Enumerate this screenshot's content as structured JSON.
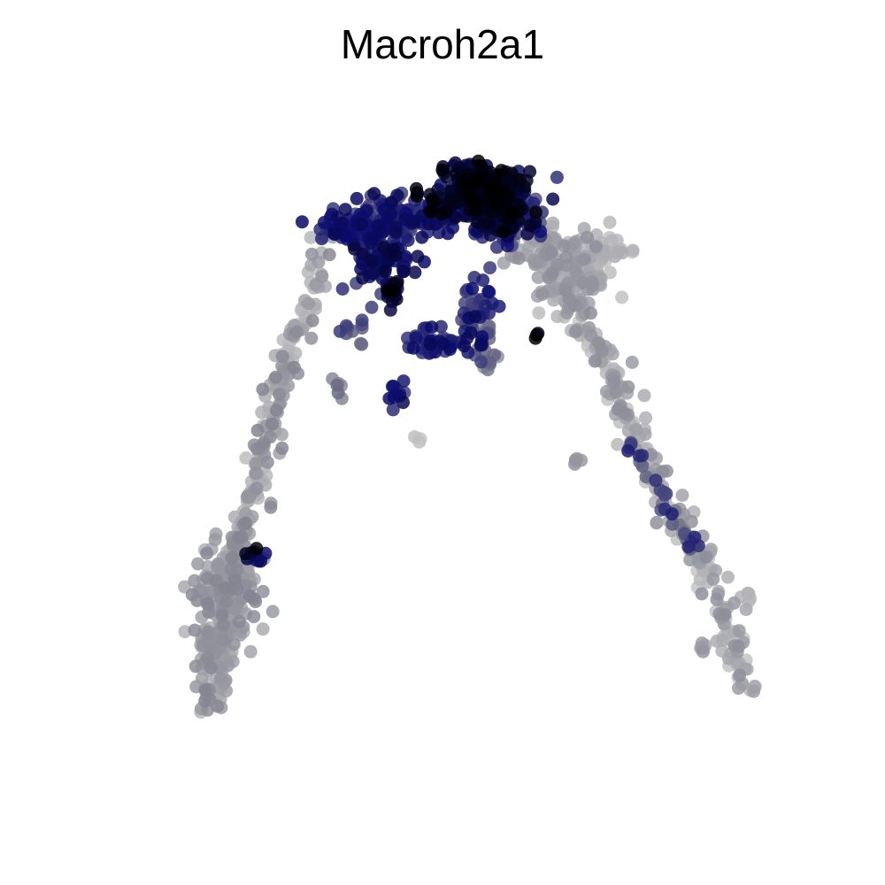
{
  "chart_data": {
    "type": "scatter",
    "title": "Macroh2a1",
    "xlabel": "",
    "ylabel": "",
    "axes": "none",
    "grid": false,
    "legend": "none",
    "xlim": [
      0,
      100
    ],
    "ylim": [
      0,
      100
    ],
    "colors": {
      "low": "#c8c8c8",
      "mid": "#7a7a8a",
      "high": "#0c0c6e",
      "max": "#000000"
    },
    "clusters": [
      {
        "cx": 55.0,
        "cy": 85.5,
        "sx": 3.0,
        "sy": 2.0,
        "n": 260,
        "expr": [
          0.82,
          1.0
        ]
      },
      {
        "cx": 58.5,
        "cy": 82.5,
        "sx": 2.5,
        "sy": 2.0,
        "n": 110,
        "expr": [
          0.55,
          0.95
        ]
      },
      {
        "cx": 46.0,
        "cy": 82.5,
        "sx": 4.5,
        "sy": 1.2,
        "n": 120,
        "expr": [
          0.55,
          0.85
        ]
      },
      {
        "cx": 38.5,
        "cy": 80.5,
        "sx": 2.8,
        "sy": 1.0,
        "n": 90,
        "expr": [
          0.55,
          0.85
        ]
      },
      {
        "cx": 42.5,
        "cy": 76.5,
        "sx": 1.8,
        "sy": 2.0,
        "n": 80,
        "expr": [
          0.6,
          0.9
        ]
      },
      {
        "cx": 43.7,
        "cy": 72.4,
        "sx": 0.6,
        "sy": 0.8,
        "n": 14,
        "expr": [
          0.85,
          1.0
        ]
      },
      {
        "cx": 54.2,
        "cy": 69.5,
        "sx": 1.3,
        "sy": 2.5,
        "n": 45,
        "expr": [
          0.55,
          0.85
        ]
      },
      {
        "cx": 48.5,
        "cy": 65.8,
        "sx": 1.4,
        "sy": 1.0,
        "n": 35,
        "expr": [
          0.6,
          0.85
        ]
      },
      {
        "cx": 55.6,
        "cy": 65.5,
        "sx": 0.6,
        "sy": 2.2,
        "n": 25,
        "expr": [
          0.25,
          0.5
        ]
      },
      {
        "cx": 43.9,
        "cy": 59.1,
        "sx": 0.6,
        "sy": 0.7,
        "n": 12,
        "expr": [
          0.6,
          0.85
        ]
      },
      {
        "cx": 38.5,
        "cy": 67.0,
        "sx": 0.8,
        "sy": 1.2,
        "n": 10,
        "expr": [
          0.4,
          0.65
        ]
      },
      {
        "cx": 36.8,
        "cy": 60.2,
        "sx": 0.5,
        "sy": 0.8,
        "n": 6,
        "expr": [
          0.3,
          0.5
        ]
      },
      {
        "cx": 61.9,
        "cy": 66.7,
        "sx": 0.3,
        "sy": 0.3,
        "n": 3,
        "expr": [
          0.95,
          1.0
        ]
      },
      {
        "cx": 63.5,
        "cy": 78.0,
        "sx": 2.2,
        "sy": 1.6,
        "n": 45,
        "expr": [
          0.05,
          0.3
        ]
      },
      {
        "cx": 67.0,
        "cy": 74.5,
        "sx": 2.5,
        "sy": 2.5,
        "n": 80,
        "expr": [
          0.0,
          0.3
        ]
      },
      {
        "cx": 70.5,
        "cy": 77.5,
        "sx": 2.0,
        "sy": 1.0,
        "n": 40,
        "expr": [
          0.0,
          0.15
        ]
      },
      {
        "cx": 67.3,
        "cy": 50.8,
        "sx": 0.4,
        "sy": 0.3,
        "n": 5,
        "expr": [
          0.15,
          0.3
        ]
      },
      {
        "cx": 47.0,
        "cy": 53.5,
        "sx": 0.3,
        "sy": 0.3,
        "n": 3,
        "expr": [
          0.0,
          0.1
        ]
      },
      {
        "cx": 83.5,
        "cy": 26.3,
        "sx": 0.5,
        "sy": 0.4,
        "n": 6,
        "expr": [
          0.1,
          0.3
        ]
      },
      {
        "cx": 89.0,
        "cy": 33.0,
        "sx": 0.6,
        "sy": 0.4,
        "n": 5,
        "expr": [
          0.0,
          0.15
        ]
      },
      {
        "cx": 22.5,
        "cy": 34.0,
        "sx": 2.5,
        "sy": 3.2,
        "n": 120,
        "expr": [
          0.1,
          0.35
        ]
      },
      {
        "cx": 21.5,
        "cy": 27.0,
        "sx": 1.3,
        "sy": 4.0,
        "n": 80,
        "expr": [
          0.05,
          0.3
        ]
      },
      {
        "cx": 26.0,
        "cy": 38.2,
        "sx": 0.8,
        "sy": 0.6,
        "n": 12,
        "expr": [
          0.65,
          1.0
        ]
      }
    ],
    "arms": [
      {
        "points": [
          [
            36.0,
            80.0
          ],
          [
            33.5,
            73.0
          ],
          [
            31.0,
            67.0
          ],
          [
            29.0,
            58.0
          ],
          [
            27.0,
            50.0
          ],
          [
            24.5,
            42.0
          ],
          [
            22.0,
            34.0
          ],
          [
            20.5,
            26.0
          ],
          [
            20.0,
            18.0
          ]
        ],
        "n": 230,
        "spread": 0.9,
        "expr": [
          0.05,
          0.35
        ]
      },
      {
        "points": [
          [
            62.0,
            77.0
          ],
          [
            66.0,
            72.0
          ],
          [
            69.0,
            67.0
          ],
          [
            71.5,
            62.0
          ],
          [
            74.0,
            55.0
          ],
          [
            77.0,
            49.0
          ],
          [
            80.0,
            43.0
          ],
          [
            83.0,
            38.0
          ],
          [
            86.0,
            32.0
          ],
          [
            88.0,
            25.0
          ],
          [
            90.0,
            21.0
          ]
        ],
        "n": 260,
        "spread": 0.9,
        "expr": [
          0.0,
          0.3
        ]
      },
      {
        "points": [
          [
            74.0,
            53.0
          ],
          [
            77.0,
            48.0
          ],
          [
            80.0,
            43.0
          ],
          [
            82.5,
            38.0
          ]
        ],
        "n": 30,
        "spread": 0.5,
        "expr": [
          0.4,
          0.75
        ]
      }
    ]
  }
}
